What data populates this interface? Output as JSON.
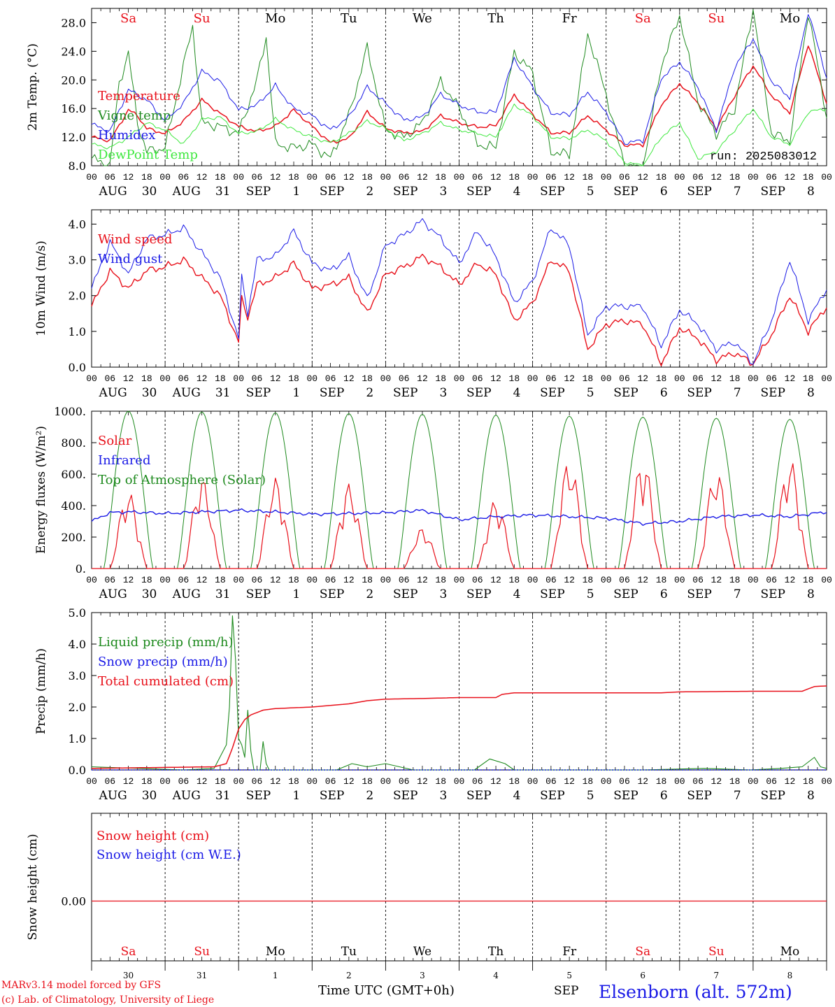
{
  "colors": {
    "red": "#e8101a",
    "green": "#1e8a1e",
    "lightgreen": "#3ee83e",
    "blue": "#1a1ae6",
    "black": "#000000"
  },
  "x_axis": {
    "start_date": "2025-08-30T00:00",
    "end_hours": 240,
    "hour_tick_labels": [
      "00",
      "06",
      "12",
      "18"
    ],
    "date_labels": [
      {
        "month": "AUG",
        "day": "30"
      },
      {
        "month": "AUG",
        "day": "31"
      },
      {
        "month": "SEP",
        "day": "1"
      },
      {
        "month": "SEP",
        "day": "2"
      },
      {
        "month": "SEP",
        "day": "3"
      },
      {
        "month": "SEP",
        "day": "4"
      },
      {
        "month": "SEP",
        "day": "5"
      },
      {
        "month": "SEP",
        "day": "6"
      },
      {
        "month": "SEP",
        "day": "7"
      },
      {
        "month": "SEP",
        "day": "8"
      }
    ],
    "weekdays": [
      {
        "label": "Sa",
        "weekend": true
      },
      {
        "label": "Su",
        "weekend": true
      },
      {
        "label": "Mo",
        "weekend": false
      },
      {
        "label": "Tu",
        "weekend": false
      },
      {
        "label": "We",
        "weekend": false
      },
      {
        "label": "Th",
        "weekend": false
      },
      {
        "label": "Fr",
        "weekend": false
      },
      {
        "label": "Sa",
        "weekend": true
      },
      {
        "label": "Su",
        "weekend": true
      },
      {
        "label": "Mo",
        "weekend": false
      }
    ],
    "bottom_day_numbers": [
      "30",
      "31",
      "1",
      "2",
      "3",
      "4",
      "5",
      "6",
      "7",
      "8"
    ],
    "bottom_month": "SEP",
    "xlabel": "Time UTC (GMT+0h)"
  },
  "footer": {
    "credit_line1": "MARv3.14 model forced by GFS",
    "credit_line2": "(c) Lab. of Climatology, University of Liege",
    "station": "Elsenborn (alt. 572m)"
  },
  "chart_data": [
    {
      "id": "temperature",
      "type": "line",
      "ylabel": "2m Temp. (°C)",
      "ylim": [
        8,
        30
      ],
      "yticks": [
        8,
        12,
        16,
        20,
        24,
        28
      ],
      "ytick_labels": [
        "8.0",
        "12.0",
        "16.0",
        "20.0",
        "24.0",
        "28.0"
      ],
      "annotation": "run: 2025083012",
      "series": [
        {
          "name": "Temperature",
          "color": "red",
          "x": [
            0,
            6,
            12,
            15,
            18,
            24,
            30,
            36,
            42,
            48,
            54,
            60,
            66,
            72,
            78,
            84,
            90,
            96,
            102,
            108,
            114,
            120,
            126,
            132,
            138,
            144,
            150,
            156,
            162,
            168,
            174,
            180,
            186,
            192,
            198,
            204,
            210,
            216,
            222,
            228,
            234,
            240
          ],
          "y": [
            12.0,
            11.5,
            15.8,
            15.0,
            13.2,
            12.5,
            14.2,
            17.2,
            15.3,
            13.5,
            12.8,
            13.5,
            15.8,
            13.5,
            11.2,
            11.8,
            15.5,
            13.2,
            12.6,
            12.8,
            15.0,
            14.0,
            13.4,
            13.6,
            17.9,
            15.2,
            12.6,
            12.6,
            15.0,
            13.0,
            10.9,
            10.9,
            16.5,
            19.5,
            16.8,
            13.2,
            17.8,
            22.0,
            17.8,
            15.4,
            25.0,
            16.8
          ]
        },
        {
          "name": "Vigne temp",
          "color": "green",
          "x": [
            0,
            6,
            9,
            12,
            15,
            18,
            24,
            30,
            33,
            36,
            42,
            48,
            54,
            57,
            60,
            66,
            72,
            78,
            84,
            90,
            96,
            102,
            108,
            114,
            120,
            126,
            132,
            138,
            144,
            150,
            156,
            162,
            168,
            174,
            180,
            186,
            192,
            198,
            204,
            210,
            216,
            222,
            228,
            234,
            240
          ],
          "y": [
            9.0,
            8.0,
            19.5,
            23.8,
            14.0,
            10.0,
            10.5,
            22.0,
            27.5,
            14.0,
            13.5,
            12.5,
            20.0,
            26.0,
            11.0,
            10.5,
            11.0,
            9.0,
            15.0,
            24.5,
            13.0,
            12.0,
            14.0,
            19.8,
            16.0,
            11.0,
            10.5,
            23.8,
            21.0,
            10.0,
            9.5,
            26.5,
            18.0,
            8.0,
            7.5,
            22.0,
            29.0,
            17.0,
            12.5,
            16.0,
            30.0,
            12.5,
            11.5,
            29.5,
            15.0
          ]
        },
        {
          "name": "Humidex",
          "color": "blue",
          "x": [
            0,
            6,
            12,
            18,
            24,
            30,
            36,
            42,
            48,
            54,
            60,
            66,
            72,
            78,
            84,
            90,
            96,
            102,
            108,
            114,
            120,
            126,
            132,
            138,
            144,
            150,
            156,
            162,
            168,
            174,
            180,
            186,
            192,
            198,
            204,
            210,
            216,
            222,
            228,
            234,
            240
          ],
          "y": [
            13.8,
            12.8,
            18.6,
            17.2,
            14.3,
            16.7,
            21.2,
            19.8,
            15.8,
            16.5,
            19.2,
            16.0,
            15.0,
            13.0,
            14.8,
            19.0,
            16.7,
            14.4,
            14.8,
            18.0,
            16.5,
            15.5,
            15.5,
            23.0,
            19.0,
            15.4,
            15.1,
            18.3,
            15.5,
            11.2,
            11.5,
            20.2,
            22.5,
            19.0,
            13.0,
            21.8,
            25.8,
            19.8,
            17.5,
            29.5,
            20.4
          ]
        },
        {
          "name": "DewPoint Temp",
          "color": "lightgreen",
          "x": [
            0,
            6,
            12,
            18,
            24,
            30,
            36,
            42,
            48,
            54,
            60,
            66,
            72,
            78,
            84,
            90,
            96,
            102,
            108,
            114,
            120,
            126,
            132,
            138,
            144,
            150,
            156,
            162,
            168,
            174,
            180,
            186,
            192,
            198,
            204,
            210,
            216,
            222,
            228,
            234,
            240
          ],
          "y": [
            11.0,
            10.5,
            12.0,
            14.0,
            13.0,
            11.0,
            14.5,
            14.8,
            12.5,
            12.8,
            14.5,
            13.0,
            12.0,
            11.2,
            12.5,
            14.2,
            13.2,
            11.5,
            12.5,
            14.0,
            13.0,
            12.5,
            12.0,
            16.5,
            15.0,
            12.0,
            11.8,
            13.0,
            11.5,
            8.5,
            8.0,
            12.0,
            14.0,
            9.0,
            10.0,
            13.0,
            16.0,
            12.0,
            11.0,
            15.5,
            16.0
          ]
        }
      ]
    },
    {
      "id": "wind",
      "type": "line",
      "ylabel": "10m Wind (m/s)",
      "ylim": [
        0,
        4.4
      ],
      "yticks": [
        0,
        1,
        2,
        3,
        4
      ],
      "ytick_labels": [
        "0.0",
        "1.0",
        "2.0",
        "3.0",
        "4.0"
      ],
      "series": [
        {
          "name": "Wind speed",
          "color": "red",
          "x": [
            0,
            6,
            12,
            18,
            24,
            30,
            36,
            42,
            48,
            49,
            51,
            54,
            60,
            66,
            72,
            78,
            84,
            90,
            96,
            102,
            108,
            114,
            120,
            126,
            132,
            138,
            144,
            150,
            156,
            162,
            168,
            174,
            180,
            186,
            192,
            198,
            204,
            210,
            216,
            222,
            228,
            234,
            240
          ],
          "y": [
            1.7,
            2.7,
            2.2,
            2.7,
            2.8,
            3.0,
            2.5,
            2.0,
            0.7,
            1.9,
            1.4,
            2.3,
            2.5,
            2.9,
            2.2,
            2.3,
            2.5,
            1.5,
            2.6,
            2.8,
            3.1,
            2.8,
            2.3,
            2.9,
            2.6,
            1.3,
            1.8,
            3.0,
            2.7,
            0.5,
            1.2,
            1.3,
            1.2,
            0.1,
            1.1,
            0.8,
            0.2,
            0.4,
            0.1,
            0.9,
            2.0,
            1.0,
            1.7
          ]
        },
        {
          "name": "Wind gust",
          "color": "blue",
          "x": [
            0,
            6,
            12,
            18,
            24,
            30,
            36,
            42,
            48,
            49,
            51,
            54,
            60,
            66,
            72,
            78,
            84,
            90,
            96,
            102,
            108,
            114,
            120,
            126,
            132,
            138,
            144,
            150,
            156,
            162,
            168,
            174,
            180,
            186,
            192,
            198,
            204,
            210,
            216,
            222,
            228,
            234,
            240
          ],
          "y": [
            2.2,
            3.5,
            2.6,
            3.6,
            3.7,
            3.9,
            3.2,
            2.5,
            0.8,
            2.5,
            1.5,
            3.0,
            3.1,
            3.8,
            2.9,
            2.7,
            3.1,
            1.9,
            3.4,
            3.7,
            4.1,
            3.6,
            2.9,
            3.8,
            3.1,
            1.8,
            2.4,
            3.9,
            3.4,
            0.9,
            1.7,
            1.7,
            1.7,
            0.6,
            1.6,
            1.2,
            0.5,
            0.7,
            0.1,
            1.3,
            3.0,
            1.3,
            2.2
          ]
        }
      ]
    },
    {
      "id": "energy",
      "type": "line",
      "ylabel": "Energy fluxes (W/m²)",
      "ylim": [
        0,
        1000
      ],
      "yticks": [
        0,
        200,
        400,
        600,
        800,
        1000
      ],
      "ytick_labels": [
        "0.",
        "200.",
        "400.",
        "600.",
        "800.",
        "1000."
      ],
      "series": [
        {
          "name": "Solar",
          "color": "red",
          "peaks": [
            490,
            580,
            580,
            540,
            260,
            440,
            700,
            710,
            630,
            700
          ]
        },
        {
          "name": "Infrared",
          "color": "blue",
          "x": [
            0,
            6,
            12,
            24,
            36,
            48,
            60,
            72,
            84,
            96,
            108,
            120,
            132,
            144,
            156,
            168,
            180,
            192,
            204,
            216,
            228,
            240
          ],
          "y": [
            300,
            355,
            360,
            350,
            360,
            370,
            360,
            345,
            350,
            355,
            370,
            310,
            330,
            340,
            330,
            320,
            285,
            300,
            330,
            340,
            330,
            360
          ]
        },
        {
          "name": "Top of Atmosphere (Solar)",
          "color": "green",
          "peaks": [
            1000,
            995,
            990,
            985,
            980,
            975,
            968,
            962,
            955,
            948
          ]
        }
      ]
    },
    {
      "id": "precip",
      "type": "line",
      "ylabel": "Precip (mm/h)",
      "ylim": [
        0,
        5
      ],
      "yticks": [
        0,
        1,
        2,
        3,
        4,
        5
      ],
      "ytick_labels": [
        "0.0",
        "1.0",
        "2.0",
        "3.0",
        "4.0",
        "5.0"
      ],
      "series": [
        {
          "name": "Liquid precip (mm/h)",
          "color": "green",
          "x": [
            0,
            30,
            40,
            44,
            45,
            46,
            47,
            48,
            49,
            50,
            51,
            52,
            53,
            54,
            55,
            56,
            57,
            58,
            60,
            80,
            85,
            90,
            96,
            105,
            115,
            120,
            125,
            130,
            135,
            138,
            144,
            180,
            200,
            215,
            225,
            232,
            236,
            238,
            240
          ],
          "y": [
            0.1,
            0.0,
            0.05,
            0.8,
            2.0,
            4.9,
            3.5,
            1.0,
            0.8,
            0.4,
            1.9,
            0.6,
            0.0,
            0.0,
            0.0,
            0.9,
            0.2,
            0.0,
            0.0,
            0.0,
            0.2,
            0.1,
            0.2,
            0.0,
            0.0,
            0.0,
            0.0,
            0.35,
            0.2,
            0.0,
            0.0,
            0.0,
            0.05,
            0.0,
            0.05,
            0.1,
            0.4,
            0.1,
            0.05
          ]
        },
        {
          "name": "Snow precip (mm/h)",
          "color": "blue",
          "x": [
            0,
            240
          ],
          "y": [
            0,
            0
          ]
        },
        {
          "name": "Total cumulated (cm)",
          "color": "red",
          "x": [
            0,
            40,
            44,
            46,
            48,
            50,
            52,
            56,
            60,
            72,
            84,
            90,
            96,
            108,
            120,
            132,
            134,
            138,
            144,
            186,
            192,
            216,
            232,
            236,
            240
          ],
          "y": [
            0.05,
            0.1,
            0.2,
            0.7,
            1.3,
            1.6,
            1.75,
            1.9,
            1.95,
            2.0,
            2.1,
            2.2,
            2.25,
            2.27,
            2.3,
            2.3,
            2.4,
            2.45,
            2.45,
            2.45,
            2.48,
            2.5,
            2.5,
            2.65,
            2.67
          ]
        }
      ]
    },
    {
      "id": "snow",
      "type": "line",
      "ylabel": "Snow height (cm)",
      "ytick_labels": [
        "0.00"
      ],
      "series": [
        {
          "name": "Snow height (cm)",
          "color": "red",
          "x": [
            0,
            240
          ],
          "y": [
            0,
            0
          ]
        },
        {
          "name": "Snow height (cm W.E.)",
          "color": "blue",
          "x": [
            0,
            240
          ],
          "y": [
            0,
            0
          ]
        }
      ]
    }
  ]
}
